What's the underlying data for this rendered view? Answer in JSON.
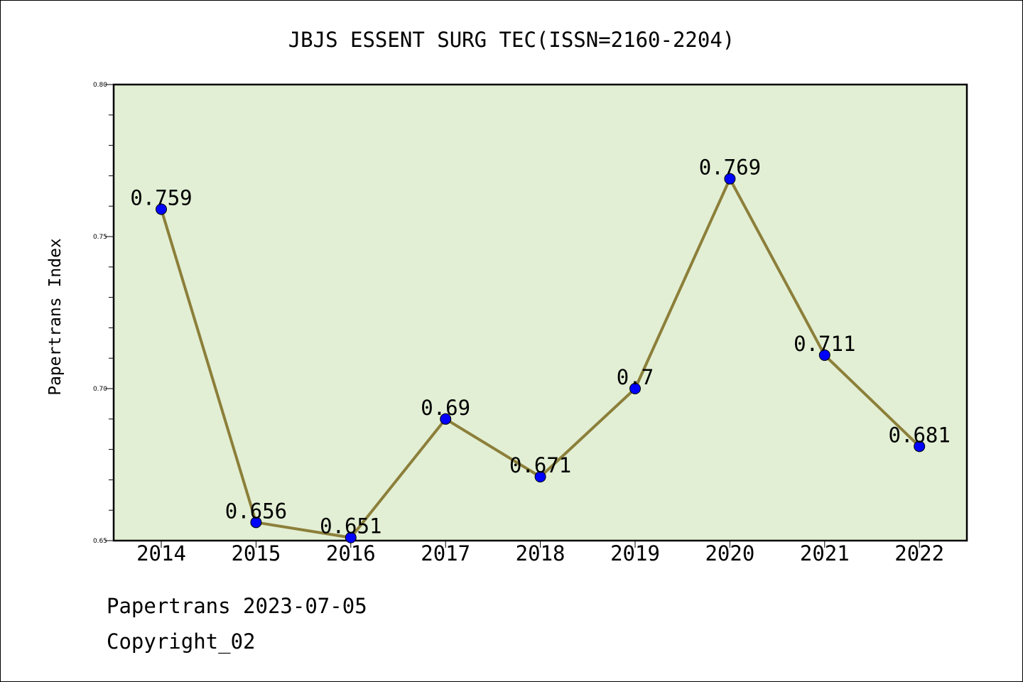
{
  "chart_data": {
    "type": "line",
    "title": "JBJS ESSENT SURG TEC(ISSN=2160-2204)",
    "xlabel": "",
    "ylabel": "Papertrans Index",
    "categories": [
      "2014",
      "2015",
      "2016",
      "2017",
      "2018",
      "2019",
      "2020",
      "2021",
      "2022"
    ],
    "series": [
      {
        "values": [
          0.759,
          0.656,
          0.651,
          0.69,
          0.671,
          0.7,
          0.769,
          0.711,
          0.681
        ],
        "labels": [
          "0.759",
          "0.656",
          "0.651",
          "0.69",
          "0.671",
          "0.7",
          "0.769",
          "0.711",
          "0.681"
        ],
        "line_color": "#8c7f3a",
        "marker_color": "#0000ff"
      }
    ],
    "ylim": [
      0.65,
      0.8
    ],
    "yticks": [
      "0.65",
      "0.70",
      "0.75",
      "0.80"
    ],
    "yticks_values": [
      0.65,
      0.7,
      0.75,
      0.8
    ],
    "plot_background": "#e2efd4",
    "grid": false,
    "legend": "none"
  },
  "footer": {
    "source": "Papertrans 2023-07-05",
    "copyright": "Copyright_02"
  }
}
